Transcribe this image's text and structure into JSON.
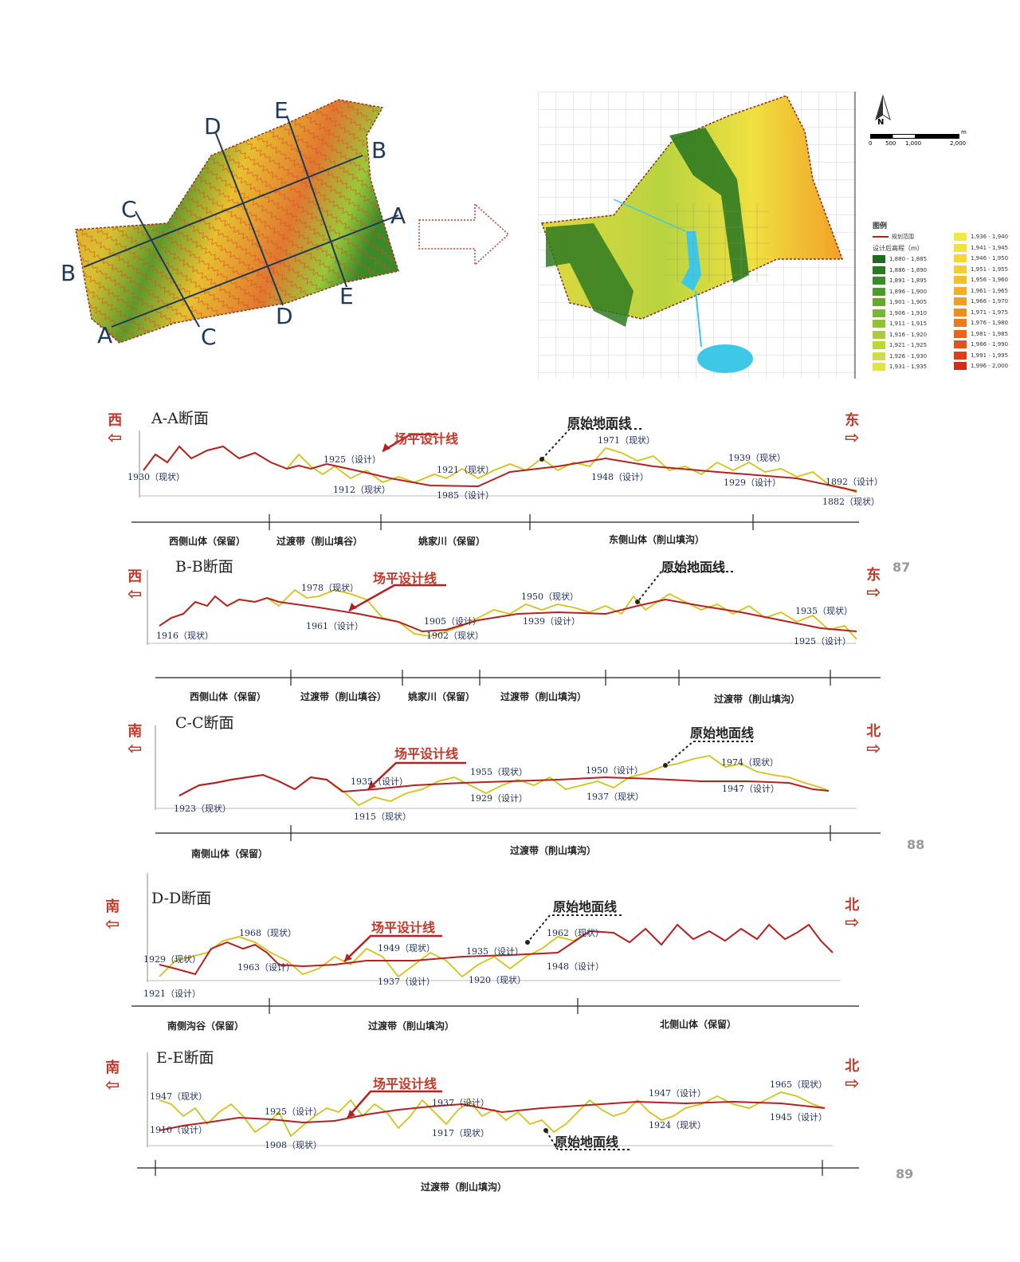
{
  "colors": {
    "design_line": "#b22222",
    "ground_line": "#d4c21a",
    "accent_red": "#c0392b"
  },
  "map_left": {
    "section_letters": [
      {
        "id": "label-b-left",
        "text": "B"
      },
      {
        "id": "label-a-bottom",
        "text": "A"
      },
      {
        "id": "label-c-top",
        "text": "C"
      },
      {
        "id": "label-c-bottom",
        "text": "C"
      },
      {
        "id": "label-d-top",
        "text": "D"
      },
      {
        "id": "label-d-bottom",
        "text": "D"
      },
      {
        "id": "label-e-top",
        "text": "E"
      },
      {
        "id": "label-e-bottom",
        "text": "E"
      },
      {
        "id": "label-b-right",
        "text": "B"
      },
      {
        "id": "label-a-right",
        "text": "A"
      }
    ]
  },
  "map_right": {
    "north": "N",
    "scale_unit": "m",
    "scale_ticks": [
      "0",
      "500",
      "1,000",
      "2,000"
    ],
    "legend_title": "图例",
    "legend_boundary": "规划范围",
    "legend_subtitle": "设计后高程（m）",
    "legend_left": [
      {
        "range": "1,880 - 1,885",
        "color": "#1e6b1e"
      },
      {
        "range": "1,886 - 1,890",
        "color": "#2a7a22"
      },
      {
        "range": "1,891 - 1,895",
        "color": "#3a8a26"
      },
      {
        "range": "1,896 - 1,900",
        "color": "#4e9a2a"
      },
      {
        "range": "1,901 - 1,905",
        "color": "#64a82e"
      },
      {
        "range": "1,906 - 1,910",
        "color": "#7ab632"
      },
      {
        "range": "1,911 - 1,915",
        "color": "#90c236"
      },
      {
        "range": "1,916 - 1,920",
        "color": "#a8cc3a"
      },
      {
        "range": "1,921 - 1,925",
        "color": "#bcd43e"
      },
      {
        "range": "1,926 - 1,930",
        "color": "#d0dc40"
      },
      {
        "range": "1,931 - 1,935",
        "color": "#e2e442"
      }
    ],
    "legend_right": [
      {
        "range": "1,936 - 1,940",
        "color": "#f0ea40"
      },
      {
        "range": "1,941 - 1,945",
        "color": "#f4e23a"
      },
      {
        "range": "1,946 - 1,950",
        "color": "#f6d834"
      },
      {
        "range": "1,951 - 1,955",
        "color": "#f6cc2e"
      },
      {
        "range": "1,956 - 1,960",
        "color": "#f6be2a"
      },
      {
        "range": "1,961 - 1,965",
        "color": "#f4ae26"
      },
      {
        "range": "1,966 - 1,970",
        "color": "#f29e22"
      },
      {
        "range": "1,971 - 1,975",
        "color": "#ee8c20"
      },
      {
        "range": "1,976 - 1,980",
        "color": "#ea7a1e"
      },
      {
        "range": "1,981 - 1,985",
        "color": "#e6661c"
      },
      {
        "range": "1,986 - 1,990",
        "color": "#e2521a"
      },
      {
        "range": "1,991 - 1,995",
        "color": "#dc3e18"
      },
      {
        "range": "1,996 - 2,000",
        "color": "#d62a16"
      }
    ]
  },
  "labels": {
    "design_line": "场平设计线",
    "ground_line": "原始地面线"
  },
  "sections": [
    {
      "title": "A-A断面",
      "dir_left": "西",
      "dir_right": "东",
      "annotations": [
        {
          "text": "1930（现状）"
        },
        {
          "text": "1925（设计）"
        },
        {
          "text": "1912（现状）"
        },
        {
          "text": "1921（现状）"
        },
        {
          "text": "1985（设计）"
        },
        {
          "text": "1971（现状）"
        },
        {
          "text": "1948（设计）"
        },
        {
          "text": "1939（现状）"
        },
        {
          "text": "1929（设计）"
        },
        {
          "text": "1892（设计）"
        },
        {
          "text": "1882（现状）"
        }
      ],
      "zones": [
        "西侧山体（保留）",
        "过渡带（削山填谷）",
        "姚家川（保留）",
        "东侧山体（削山填沟）"
      ]
    },
    {
      "title": "B-B断面",
      "dir_left": "西",
      "dir_right": "东",
      "page": "87",
      "annotations": [
        {
          "text": "1916（现状）"
        },
        {
          "text": "1978（现状）"
        },
        {
          "text": "1961（设计）"
        },
        {
          "text": "1905（设计）"
        },
        {
          "text": "1902（现状）"
        },
        {
          "text": "1950（现状）"
        },
        {
          "text": "1939（设计）"
        },
        {
          "text": "1935（现状）"
        },
        {
          "text": "1925（设计）"
        }
      ],
      "zones": [
        "西侧山体（保留）",
        "过渡带（削山填谷）",
        "姚家川（保留）",
        "过渡带（削山填沟）",
        "过渡带（削山填沟）"
      ]
    },
    {
      "title": "C-C断面",
      "dir_left": "南",
      "dir_right": "北",
      "page": "88",
      "annotations": [
        {
          "text": "1923（现状）"
        },
        {
          "text": "1935（设计）"
        },
        {
          "text": "1915（现状）"
        },
        {
          "text": "1955（现状）"
        },
        {
          "text": "1929（设计）"
        },
        {
          "text": "1950（设计）"
        },
        {
          "text": "1937（现状）"
        },
        {
          "text": "1974（现状）"
        },
        {
          "text": "1947（设计）"
        }
      ],
      "zones": [
        "南侧山体（保留）",
        "过渡带（削山填沟）"
      ]
    },
    {
      "title": "D-D断面",
      "dir_left": "南",
      "dir_right": "北",
      "annotations": [
        {
          "text": "1929（现状）"
        },
        {
          "text": "1921（设计）"
        },
        {
          "text": "1968（现状）"
        },
        {
          "text": "1963（设计）"
        },
        {
          "text": "1949（现状）"
        },
        {
          "text": "1937（设计）"
        },
        {
          "text": "1935（设计）"
        },
        {
          "text": "1920（现状）"
        },
        {
          "text": "1962（现状）"
        },
        {
          "text": "1948（设计）"
        }
      ],
      "zones": [
        "南侧沟谷（保留）",
        "过渡带（削山填沟）",
        "北侧山体（保留）"
      ]
    },
    {
      "title": "E-E断面",
      "dir_left": "南",
      "dir_right": "北",
      "page": "89",
      "annotations": [
        {
          "text": "1947（现状）"
        },
        {
          "text": "1910（设计）"
        },
        {
          "text": "1925（设计）"
        },
        {
          "text": "1908（现状）"
        },
        {
          "text": "1937（设计）"
        },
        {
          "text": "1917（现状）"
        },
        {
          "text": "1947（设计）"
        },
        {
          "text": "1924（现状）"
        },
        {
          "text": "1965（现状）"
        },
        {
          "text": "1945（设计）"
        }
      ],
      "zones": [
        "过渡带（削山填沟）"
      ]
    }
  ]
}
